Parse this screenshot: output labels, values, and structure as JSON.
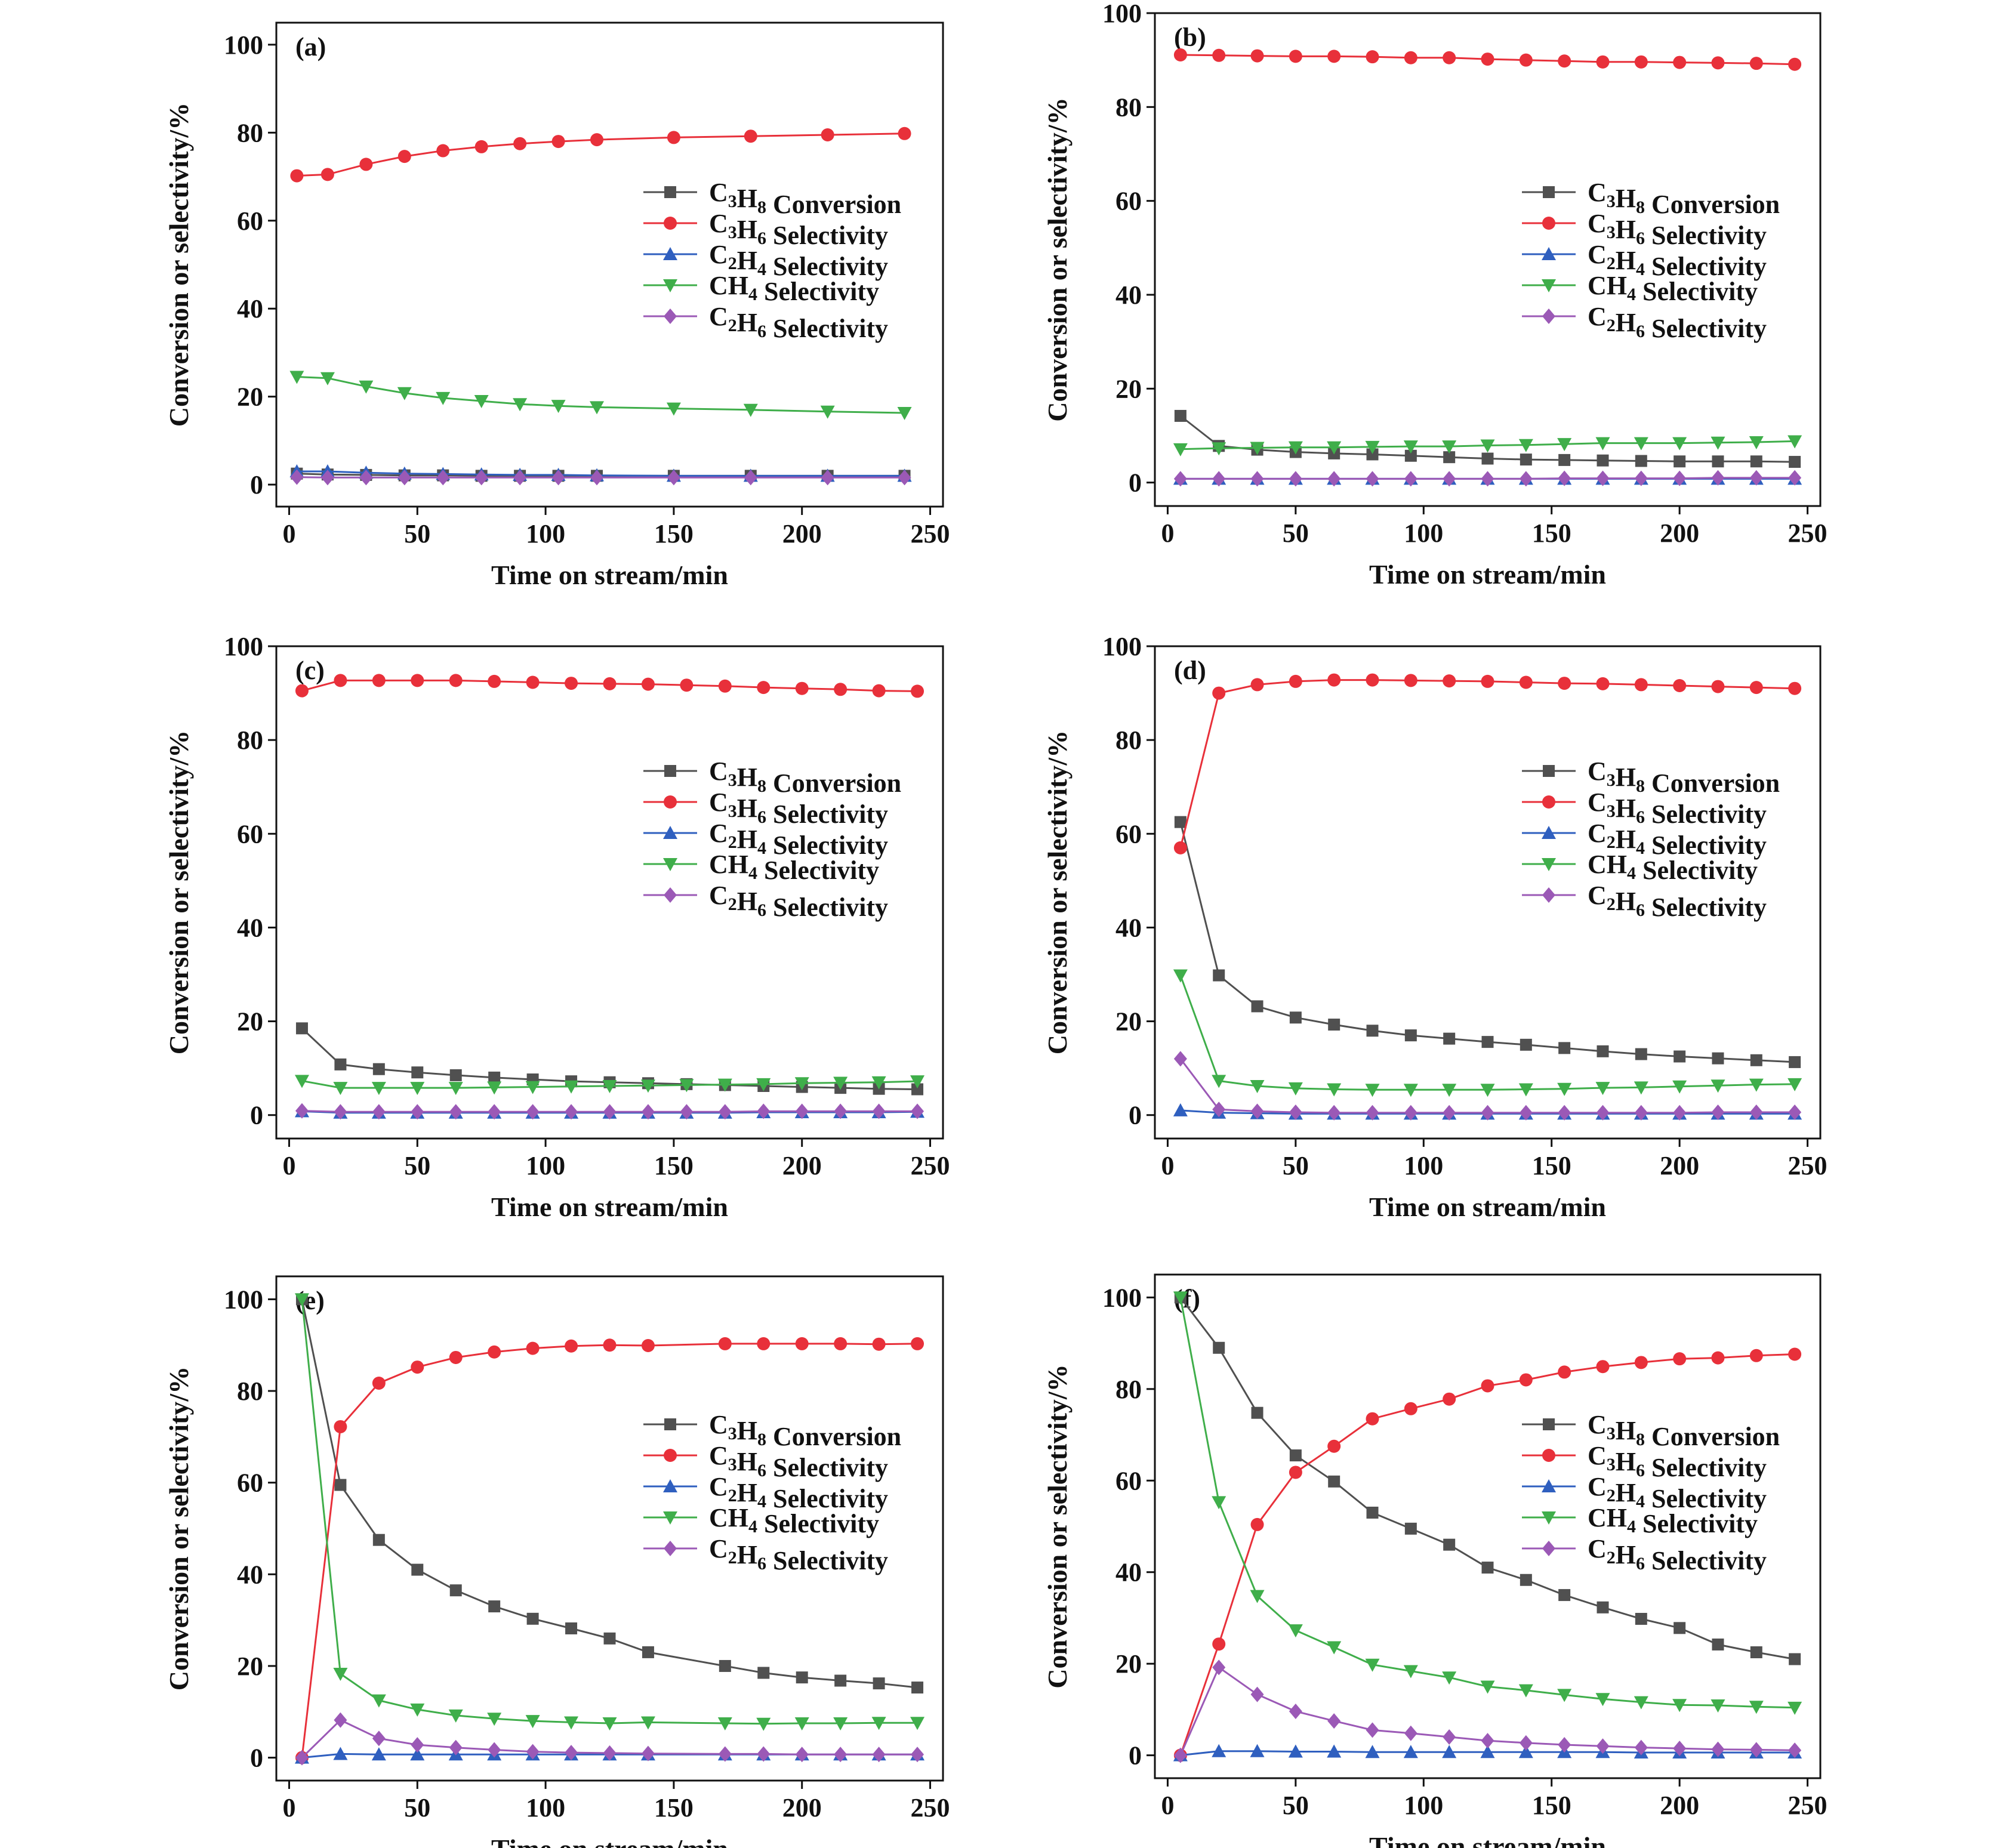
{
  "axis": {
    "xlabel": "Time on stream/min",
    "ylabel": "Conversion or selectivity/%"
  },
  "legend_labels": [
    {
      "pre": "C",
      "s1": "3",
      "mid": "H",
      "s2": "8",
      "post": " Conversion"
    },
    {
      "pre": "C",
      "s1": "3",
      "mid": "H",
      "s2": "6",
      "post": " Selectivity"
    },
    {
      "pre": "C",
      "s1": "2",
      "mid": "H",
      "s2": "4",
      "post": " Selectivity"
    },
    {
      "pre": "CH",
      "s1": "4",
      "mid": "",
      "s2": "",
      "post": " Selectivity"
    },
    {
      "pre": "C",
      "s1": "2",
      "mid": "H",
      "s2": "6",
      "post": " Selectivity"
    }
  ],
  "series_style": [
    {
      "color": "#505050",
      "marker": "square"
    },
    {
      "color": "#e8303a",
      "marker": "circle"
    },
    {
      "color": "#2f5fbf",
      "marker": "triangle-up"
    },
    {
      "color": "#3fae4a",
      "marker": "triangle-down"
    },
    {
      "color": "#9b59b6",
      "marker": "diamond"
    }
  ],
  "chart_data": [
    {
      "type": "line",
      "panel_label": "(a)",
      "xlabel": "Time on stream/min",
      "ylabel": "Conversion or selectivity/%",
      "xlim": [
        -5,
        255
      ],
      "ylim": [
        -5,
        105
      ],
      "xticks": [
        0,
        50,
        100,
        150,
        200,
        250
      ],
      "yticks": [
        0,
        20,
        40,
        60,
        80,
        100
      ],
      "x": [
        3,
        15,
        30,
        45,
        60,
        75,
        90,
        105,
        120,
        150,
        180,
        210,
        240
      ],
      "series": [
        {
          "name": "C3H8 Conversion",
          "values": [
            2.5,
            2.3,
            2.2,
            2.1,
            2.1,
            2.0,
            2.0,
            2.0,
            2.0,
            2.0,
            2.0,
            2.0,
            2.0
          ]
        },
        {
          "name": "C3H6 Selectivity",
          "values": [
            70.2,
            70.5,
            72.8,
            74.6,
            75.9,
            76.8,
            77.5,
            78.0,
            78.4,
            78.9,
            79.2,
            79.5,
            79.8
          ]
        },
        {
          "name": "C2H4 Selectivity",
          "values": [
            3.0,
            3.0,
            2.7,
            2.5,
            2.4,
            2.3,
            2.2,
            2.2,
            2.1,
            2.0,
            2.0,
            2.0,
            2.0
          ]
        },
        {
          "name": "CH4 Selectivity",
          "values": [
            24.5,
            24.2,
            22.3,
            20.8,
            19.7,
            19.0,
            18.3,
            17.9,
            17.6,
            17.3,
            17.0,
            16.6,
            16.3
          ]
        },
        {
          "name": "C2H6 Selectivity",
          "values": [
            1.7,
            1.6,
            1.6,
            1.6,
            1.6,
            1.6,
            1.6,
            1.6,
            1.6,
            1.6,
            1.6,
            1.6,
            1.6
          ]
        }
      ],
      "legend": "right"
    },
    {
      "type": "line",
      "panel_label": "(b)",
      "xlabel": "Time on stream/min",
      "ylabel": "Conversion or selectivity/%",
      "xlim": [
        -5,
        255
      ],
      "ylim": [
        -5,
        100
      ],
      "xticks": [
        0,
        50,
        100,
        150,
        200,
        250
      ],
      "yticks": [
        0,
        20,
        40,
        60,
        80,
        100
      ],
      "x": [
        5,
        20,
        35,
        50,
        65,
        80,
        95,
        110,
        125,
        140,
        155,
        170,
        185,
        200,
        215,
        230,
        245
      ],
      "series": [
        {
          "name": "C3H8 Conversion",
          "values": [
            14.2,
            7.8,
            7.0,
            6.5,
            6.2,
            6.0,
            5.7,
            5.4,
            5.1,
            4.9,
            4.8,
            4.7,
            4.6,
            4.5,
            4.5,
            4.5,
            4.4
          ]
        },
        {
          "name": "C3H6 Selectivity",
          "values": [
            91.1,
            91.0,
            90.9,
            90.8,
            90.8,
            90.7,
            90.5,
            90.5,
            90.2,
            90.0,
            89.8,
            89.6,
            89.6,
            89.5,
            89.4,
            89.3,
            89.1
          ]
        },
        {
          "name": "C2H4 Selectivity",
          "values": [
            0.8,
            0.8,
            0.8,
            0.8,
            0.8,
            0.8,
            0.8,
            0.8,
            0.8,
            0.8,
            0.8,
            0.8,
            0.8,
            0.8,
            0.8,
            0.8,
            0.8
          ]
        },
        {
          "name": "CH4 Selectivity",
          "values": [
            7.1,
            7.3,
            7.4,
            7.5,
            7.5,
            7.6,
            7.7,
            7.7,
            7.9,
            8.0,
            8.2,
            8.4,
            8.4,
            8.4,
            8.5,
            8.6,
            8.8
          ]
        },
        {
          "name": "C2H6 Selectivity",
          "values": [
            0.8,
            0.8,
            0.8,
            0.8,
            0.8,
            0.8,
            0.8,
            0.8,
            0.8,
            0.8,
            0.9,
            0.9,
            0.9,
            0.9,
            1.0,
            1.0,
            1.0
          ]
        }
      ],
      "legend": "right"
    },
    {
      "type": "line",
      "panel_label": "(c)",
      "xlabel": "Time on stream/min",
      "ylabel": "Conversion or selectivity/%",
      "xlim": [
        -5,
        255
      ],
      "ylim": [
        -5,
        100
      ],
      "xticks": [
        0,
        50,
        100,
        150,
        200,
        250
      ],
      "yticks": [
        0,
        20,
        40,
        60,
        80,
        100
      ],
      "x": [
        5,
        20,
        35,
        50,
        65,
        80,
        95,
        110,
        125,
        140,
        155,
        170,
        185,
        200,
        215,
        230,
        245
      ],
      "series": [
        {
          "name": "C3H8 Conversion",
          "values": [
            18.5,
            10.8,
            9.8,
            9.1,
            8.5,
            8.0,
            7.6,
            7.2,
            7.0,
            6.8,
            6.6,
            6.4,
            6.2,
            6.0,
            5.8,
            5.6,
            5.5
          ]
        },
        {
          "name": "C3H6 Selectivity",
          "values": [
            90.5,
            92.7,
            92.7,
            92.7,
            92.7,
            92.5,
            92.3,
            92.1,
            92.0,
            91.9,
            91.7,
            91.5,
            91.2,
            91.0,
            90.8,
            90.5,
            90.4
          ]
        },
        {
          "name": "C2H4 Selectivity",
          "values": [
            0.8,
            0.5,
            0.5,
            0.5,
            0.5,
            0.5,
            0.5,
            0.5,
            0.5,
            0.5,
            0.5,
            0.5,
            0.6,
            0.6,
            0.6,
            0.6,
            0.7
          ]
        },
        {
          "name": "CH4 Selectivity",
          "values": [
            7.3,
            5.8,
            5.8,
            5.8,
            5.8,
            5.9,
            6.0,
            6.1,
            6.2,
            6.3,
            6.4,
            6.5,
            6.6,
            6.8,
            6.9,
            7.0,
            7.2
          ]
        },
        {
          "name": "C2H6 Selectivity",
          "values": [
            0.9,
            0.7,
            0.7,
            0.7,
            0.7,
            0.7,
            0.7,
            0.7,
            0.7,
            0.7,
            0.7,
            0.7,
            0.8,
            0.8,
            0.8,
            0.8,
            0.8
          ]
        }
      ],
      "legend": "right"
    },
    {
      "type": "line",
      "panel_label": "(d)",
      "xlabel": "Time on stream/min",
      "ylabel": "Conversion or selectivity/%",
      "xlim": [
        -5,
        255
      ],
      "ylim": [
        -5,
        100
      ],
      "xticks": [
        0,
        50,
        100,
        150,
        200,
        250
      ],
      "yticks": [
        0,
        20,
        40,
        60,
        80,
        100
      ],
      "x": [
        5,
        20,
        35,
        50,
        65,
        80,
        95,
        110,
        125,
        140,
        155,
        170,
        185,
        200,
        215,
        230,
        245
      ],
      "series": [
        {
          "name": "C3H8 Conversion",
          "values": [
            62.5,
            29.8,
            23.2,
            20.8,
            19.3,
            18.0,
            17.0,
            16.3,
            15.6,
            15.0,
            14.3,
            13.6,
            13.0,
            12.5,
            12.1,
            11.7,
            11.3
          ]
        },
        {
          "name": "C3H6 Selectivity",
          "values": [
            57.0,
            90.0,
            91.8,
            92.5,
            92.8,
            92.8,
            92.7,
            92.6,
            92.5,
            92.3,
            92.1,
            92.0,
            91.8,
            91.6,
            91.4,
            91.2,
            91.0
          ]
        },
        {
          "name": "C2H4 Selectivity",
          "values": [
            1.0,
            0.5,
            0.4,
            0.3,
            0.3,
            0.3,
            0.3,
            0.3,
            0.3,
            0.3,
            0.3,
            0.3,
            0.3,
            0.3,
            0.3,
            0.3,
            0.3
          ]
        },
        {
          "name": "CH4 Selectivity",
          "values": [
            29.8,
            7.3,
            6.2,
            5.7,
            5.5,
            5.4,
            5.4,
            5.4,
            5.4,
            5.5,
            5.6,
            5.8,
            5.9,
            6.1,
            6.3,
            6.5,
            6.6
          ]
        },
        {
          "name": "C2H6 Selectivity",
          "values": [
            12.0,
            1.2,
            0.8,
            0.6,
            0.5,
            0.5,
            0.5,
            0.5,
            0.5,
            0.5,
            0.5,
            0.5,
            0.5,
            0.5,
            0.6,
            0.6,
            0.6
          ]
        }
      ],
      "legend": "right"
    },
    {
      "type": "line",
      "panel_label": "(e)",
      "xlabel": "Time on stream/min",
      "ylabel": "Conversion or selectivity/%",
      "xlim": [
        -5,
        255
      ],
      "ylim": [
        -5,
        105
      ],
      "xticks": [
        0,
        50,
        100,
        150,
        200,
        250
      ],
      "yticks": [
        0,
        20,
        40,
        60,
        80,
        100
      ],
      "x": [
        5,
        20,
        35,
        50,
        65,
        80,
        95,
        110,
        125,
        140,
        170,
        185,
        200,
        215,
        230,
        245
      ],
      "series": [
        {
          "name": "C3H8 Conversion",
          "values": [
            100,
            59.5,
            47.5,
            41.0,
            36.5,
            33.0,
            30.3,
            28.2,
            26.0,
            23.0,
            20.0,
            18.5,
            17.5,
            16.8,
            16.2,
            15.3
          ]
        },
        {
          "name": "C3H6 Selectivity",
          "values": [
            0,
            72.2,
            81.7,
            85.2,
            87.3,
            88.5,
            89.3,
            89.8,
            90.0,
            89.9,
            90.3,
            90.3,
            90.3,
            90.3,
            90.2,
            90.3
          ]
        },
        {
          "name": "C2H4 Selectivity",
          "values": [
            0,
            0.8,
            0.7,
            0.7,
            0.7,
            0.7,
            0.7,
            0.7,
            0.7,
            0.7,
            0.7,
            0.7,
            0.7,
            0.7,
            0.7,
            0.7
          ]
        },
        {
          "name": "CH4 Selectivity",
          "values": [
            100,
            18.3,
            12.5,
            10.5,
            9.2,
            8.5,
            8.0,
            7.7,
            7.5,
            7.7,
            7.5,
            7.4,
            7.5,
            7.5,
            7.6,
            7.6
          ]
        },
        {
          "name": "C2H6 Selectivity",
          "values": [
            0,
            8.2,
            4.2,
            2.8,
            2.2,
            1.7,
            1.3,
            1.1,
            1.0,
            0.9,
            0.8,
            0.8,
            0.7,
            0.7,
            0.7,
            0.7
          ]
        }
      ],
      "legend": "right"
    },
    {
      "type": "line",
      "panel_label": "(f)",
      "xlabel": "Time on stream/min",
      "ylabel": "Conversion or selectivity/%",
      "xlim": [
        -5,
        255
      ],
      "ylim": [
        -5,
        105
      ],
      "xticks": [
        0,
        50,
        100,
        150,
        200,
        250
      ],
      "yticks": [
        0,
        20,
        40,
        60,
        80,
        100
      ],
      "x": [
        5,
        20,
        35,
        50,
        65,
        80,
        95,
        110,
        125,
        140,
        155,
        170,
        185,
        200,
        215,
        230,
        245
      ],
      "series": [
        {
          "name": "C3H8 Conversion",
          "values": [
            100,
            89.0,
            74.8,
            65.5,
            59.8,
            53.0,
            49.5,
            46.0,
            41.0,
            38.3,
            35.0,
            32.3,
            29.8,
            27.8,
            24.2,
            22.5,
            21.0
          ]
        },
        {
          "name": "C3H6 Selectivity",
          "values": [
            0,
            24.3,
            50.4,
            61.8,
            67.5,
            73.5,
            75.7,
            77.8,
            80.7,
            82.0,
            83.7,
            84.9,
            85.8,
            86.6,
            86.8,
            87.3,
            87.6
          ]
        },
        {
          "name": "C2H4 Selectivity",
          "values": [
            0,
            0.9,
            0.9,
            0.8,
            0.8,
            0.7,
            0.7,
            0.7,
            0.7,
            0.7,
            0.7,
            0.7,
            0.6,
            0.6,
            0.6,
            0.6,
            0.6
          ]
        },
        {
          "name": "CH4 Selectivity",
          "values": [
            100,
            55.3,
            34.8,
            27.3,
            23.6,
            19.8,
            18.4,
            17.0,
            15.0,
            14.2,
            13.2,
            12.3,
            11.6,
            11.0,
            10.9,
            10.6,
            10.4
          ]
        },
        {
          "name": "C2H6 Selectivity",
          "values": [
            0,
            19.2,
            13.3,
            9.6,
            7.5,
            5.5,
            4.8,
            4.0,
            3.2,
            2.7,
            2.3,
            2.0,
            1.7,
            1.5,
            1.3,
            1.2,
            1.1
          ]
        }
      ],
      "legend": "right"
    }
  ]
}
